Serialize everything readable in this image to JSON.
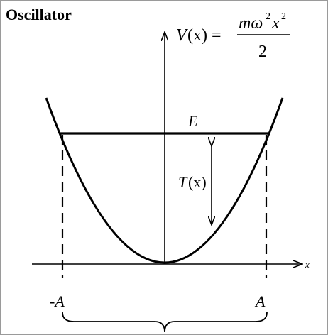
{
  "title": "Oscillator",
  "formula": {
    "lhs_v": "V",
    "lhs_paren": "(x) =",
    "num_m_omega": "mω",
    "num_sup1": "2",
    "num_x": "x",
    "num_sup2": "2",
    "den": "2"
  },
  "labels": {
    "energy": "E",
    "kinetic_t": "T",
    "kinetic_arg": "(x)",
    "x_axis": "x",
    "left_turning": "-A",
    "right_turning": "A"
  }
}
